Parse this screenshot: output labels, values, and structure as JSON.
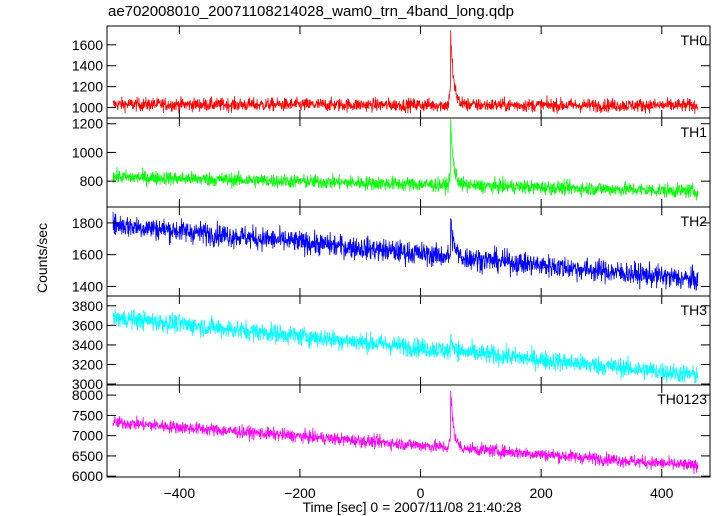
{
  "title": "ae702008010_20071108214028_wam0_trn_4band_long.qdp",
  "xlabel": "Time [sec] 0 = 2007/11/08 21:40:28",
  "ylabel": "Counts/sec",
  "colors": {
    "TH0": "#ff0000",
    "TH1": "#00ff00",
    "TH2": "#0000ff",
    "TH3": "#00ffff",
    "TH0123": "#ff00ff"
  },
  "chart_data": {
    "type": "line",
    "xlim": [
      -520,
      480
    ],
    "x_ticks": [
      -400,
      -200,
      0,
      200,
      400
    ],
    "x_range": [
      -510,
      460
    ],
    "grid": false,
    "panels": [
      {
        "name": "TH0",
        "ylim": [
          900,
          1780
        ],
        "y_ticks": [
          1000,
          1200,
          1400,
          1600
        ],
        "baseline_start": 1030,
        "baseline_end": 1020,
        "noise": 45,
        "burst_time": 50,
        "burst_peak": 1760
      },
      {
        "name": "TH1",
        "ylim": [
          620,
          1240
        ],
        "y_ticks": [
          800,
          1000,
          1200
        ],
        "baseline_start": 830,
        "baseline_end": 730,
        "noise": 35,
        "burst_time": 50,
        "burst_peak": 1230
      },
      {
        "name": "TH2",
        "ylim": [
          1340,
          1900
        ],
        "y_ticks": [
          1400,
          1600,
          1800
        ],
        "baseline_start": 1790,
        "baseline_end": 1440,
        "noise": 50,
        "burst_time": 50,
        "burst_peak": 1830
      },
      {
        "name": "TH3",
        "ylim": [
          2990,
          3900
        ],
        "y_ticks": [
          3000,
          3200,
          3400,
          3600,
          3800
        ],
        "baseline_start": 3680,
        "baseline_end": 3090,
        "noise": 70,
        "burst_time": 50,
        "burst_peak": 3500
      },
      {
        "name": "TH0123",
        "ylim": [
          5980,
          8250
        ],
        "y_ticks": [
          6000,
          6500,
          7000,
          7500,
          8000
        ],
        "baseline_start": 7330,
        "baseline_end": 6250,
        "noise": 110,
        "burst_time": 50,
        "burst_peak": 8200
      }
    ]
  }
}
